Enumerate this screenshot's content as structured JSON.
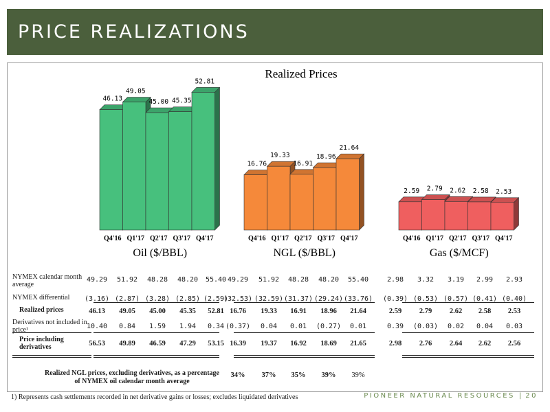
{
  "header": {
    "title": "PRICE REALIZATIONS"
  },
  "chart_title": "Realized Prices",
  "chart_data": [
    {
      "type": "bar",
      "title": "Oil ($/BBL)",
      "categories": [
        "Q4'16",
        "Q1'17",
        "Q2'17",
        "Q3'17",
        "Q4'17"
      ],
      "values": [
        46.13,
        49.05,
        45.0,
        45.35,
        52.81
      ],
      "labels": [
        "46.13",
        "49.05",
        "45.00",
        "45.35",
        "52.81"
      ],
      "color": "#47c07d"
    },
    {
      "type": "bar",
      "title": "NGL ($/BBL)",
      "categories": [
        "Q4'16",
        "Q1'17",
        "Q2'17",
        "Q3'17",
        "Q4'17"
      ],
      "values": [
        16.76,
        19.33,
        16.91,
        18.96,
        21.64
      ],
      "labels": [
        "16.76",
        "19.33",
        "16.91",
        "18.96",
        "21.64"
      ],
      "color": "#f5893a"
    },
    {
      "type": "bar",
      "title": "Gas ($/MCF)",
      "categories": [
        "Q4'16",
        "Q1'17",
        "Q2'17",
        "Q3'17",
        "Q4'17"
      ],
      "values": [
        2.59,
        2.79,
        2.62,
        2.58,
        2.53
      ],
      "labels": [
        "2.59",
        "2.79",
        "2.62",
        "2.58",
        "2.53"
      ],
      "color": "#ef5f5f"
    }
  ],
  "table": {
    "rows": [
      {
        "label": "NYMEX calendar month average",
        "bold": false,
        "values": [
          "49.29",
          "51.92",
          "48.28",
          "48.20",
          "55.40",
          "49.29",
          "51.92",
          "48.28",
          "48.20",
          "55.40",
          "2.98",
          "3.32",
          "3.19",
          "2.99",
          "2.93"
        ]
      },
      {
        "label": "NYMEX differential",
        "bold": false,
        "values": [
          "(3.16)",
          "(2.87)",
          "(3.28)",
          "(2.85)",
          "(2.59)",
          "(32.53)",
          "(32.59)",
          "(31.37)",
          "(29.24)",
          "(33.76)",
          "(0.39)",
          "(0.53)",
          "(0.57)",
          "(0.41)",
          "(0.40)"
        ]
      },
      {
        "label": "Realized prices",
        "bold": true,
        "values": [
          "46.13",
          "49.05",
          "45.00",
          "45.35",
          "52.81",
          "16.76",
          "19.33",
          "16.91",
          "18.96",
          "21.64",
          "2.59",
          "2.79",
          "2.62",
          "2.58",
          "2.53"
        ]
      },
      {
        "label": "Derivatives not included in price¹",
        "bold": false,
        "values": [
          "10.40",
          "0.84",
          "1.59",
          "1.94",
          "0.34",
          "(0.37)",
          "0.04",
          "0.01",
          "(0.27)",
          "0.01",
          "0.39",
          "(0.03)",
          "0.02",
          "0.04",
          "0.03"
        ]
      },
      {
        "label": "Price including derivatives",
        "bold": true,
        "values": [
          "56.53",
          "49.89",
          "46.59",
          "47.29",
          "53.15",
          "16.39",
          "19.37",
          "16.92",
          "18.69",
          "21.65",
          "2.98",
          "2.76",
          "2.64",
          "2.62",
          "2.56"
        ]
      }
    ]
  },
  "ngl_pct": {
    "label": "Realized NGL prices, excluding derivatives, as a percentage of NYMEX oil calendar month average",
    "values": [
      "34%",
      "37%",
      "35%",
      "39%",
      "39%"
    ]
  },
  "footnote": "1)  Represents cash settlements recorded in net derivative gains or losses; excludes liquidated derivatives",
  "brand": {
    "name": "PIONEER NATURAL RESOURCES",
    "page": "20"
  }
}
